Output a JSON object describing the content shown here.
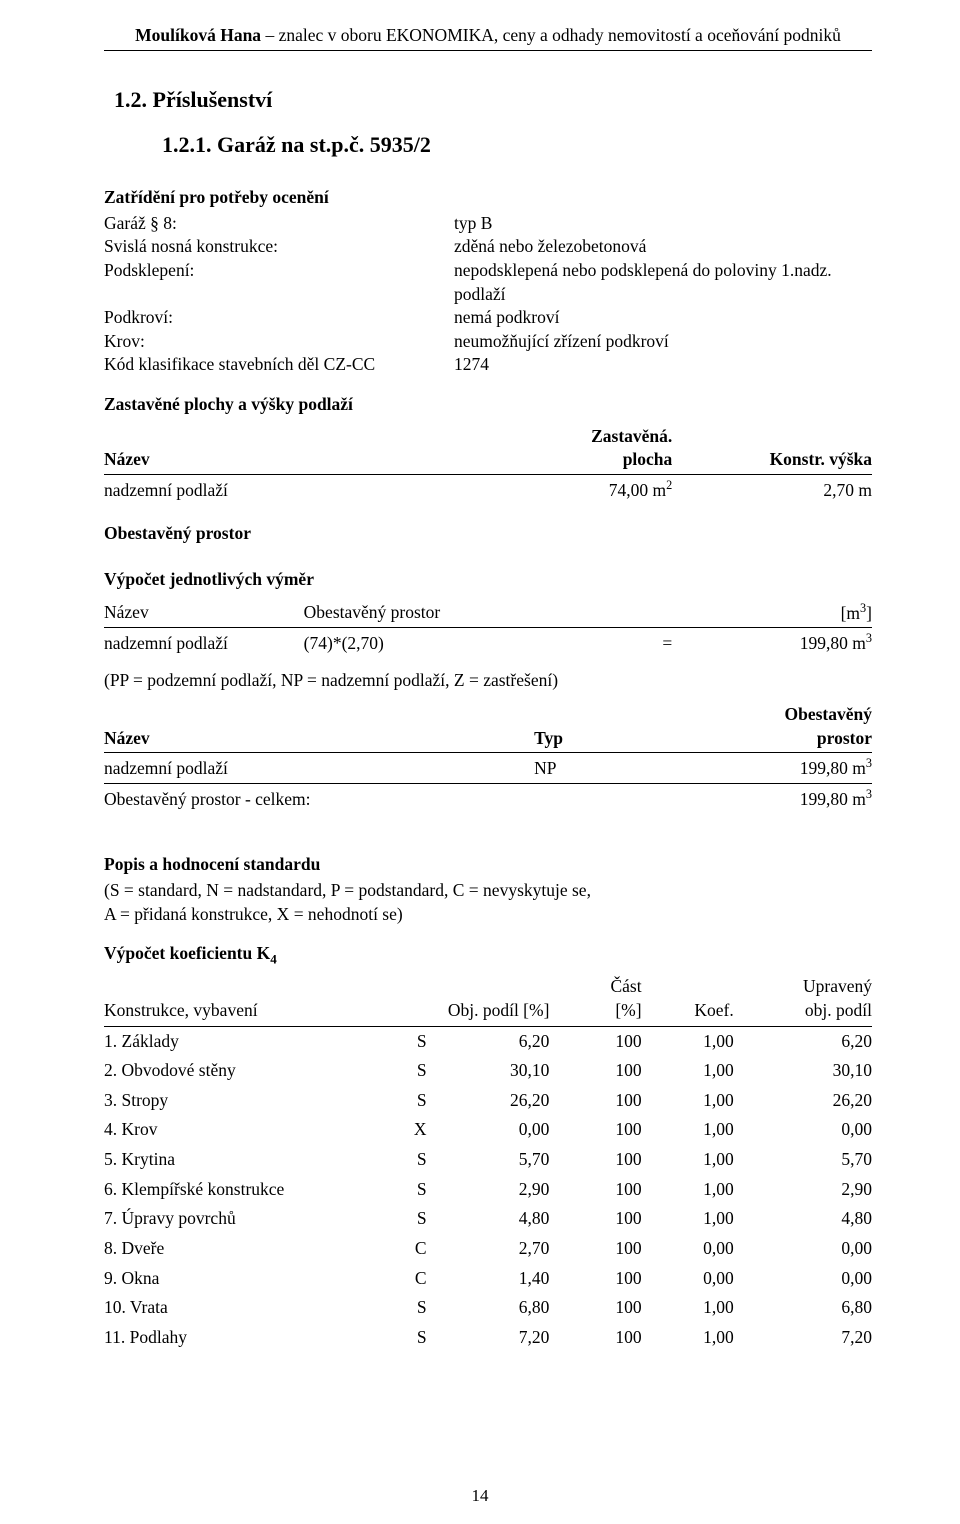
{
  "header": {
    "left": "Moulíková Hana",
    "sep": " – ",
    "right": "znalec v oboru EKONOMIKA, ceny a odhady nemovitostí a oceňování podniků"
  },
  "h1": "1.2. Příslušenství",
  "h2": "1.2.1. Garáž na st.p.č. 5935/2",
  "sec1": {
    "title": "Zatřídění pro potřeby ocenění",
    "rows": [
      {
        "k": "Garáž § 8:",
        "v": "typ B"
      },
      {
        "k": "Svislá nosná konstrukce:",
        "v": "zděná nebo železobetonová"
      },
      {
        "k": "Podsklepení:",
        "v": "nepodsklepená nebo podsklepená do poloviny 1.nadz. podlaží"
      },
      {
        "k": "Podkroví:",
        "v": "nemá podkroví"
      },
      {
        "k": "Krov:",
        "v": "neumožňující zřízení podkroví"
      },
      {
        "k": "Kód klasifikace stavebních děl CZ-CC",
        "v": "1274"
      }
    ]
  },
  "plochy": {
    "title": "Zastavěné plochy a výšky podlaží",
    "head_nazev": "Název",
    "head_plocha1": "Zastavěná.",
    "head_plocha2": "plocha",
    "head_vyska": "Konstr. výška",
    "row_label": "nadzemní podlaží",
    "row_area_val": "74,00 m",
    "row_area_sup": "2",
    "row_h": "2,70 m"
  },
  "obestaveny_title": "Obestavěný prostor",
  "vypocty": {
    "title": "Výpočet jednotlivých výměr",
    "h_nazev": "Název",
    "h_op": "Obestavěný prostor",
    "h_m3_pre": "[m",
    "h_m3_sup": "3",
    "h_m3_post": "]",
    "r_nazev": "nadzemní podlaží",
    "r_expr": "(74)*(2,70)",
    "r_eq": "=",
    "r_val_pre": "199,80 m",
    "r_val_sup": "3"
  },
  "note": "(PP = podzemní podlaží, NP = nadzemní podlaží, Z = zastřešení)",
  "tab4": {
    "h_nazev": "Název",
    "h_typ": "Typ",
    "h_op1": "Obestavěný",
    "h_op2": "prostor",
    "r1_nazev": "nadzemní podlaží",
    "r1_typ": "NP",
    "r1_val_pre": "199,80 m",
    "r1_sup": "3",
    "r2_nazev": "Obestavěný prostor - celkem:",
    "r2_val_pre": "199,80 m",
    "r2_sup": "3"
  },
  "standard": {
    "title": "Popis a hodnocení standardu",
    "line1": "(S = standard, N = nadstandard, P = podstandard, C = nevyskytuje se,",
    "line2": "A = přidaná konstrukce, X = nehodnotí se)"
  },
  "k4": {
    "title": "Výpočet koeficientu K",
    "title_sub": "4",
    "head": {
      "c1": "Konstrukce, vybavení",
      "c2": "Obj. podíl [%]",
      "c3": "Část",
      "c3b": "[%]",
      "c4": "Koef.",
      "c5a": "Upravený",
      "c5b": "obj. podíl"
    },
    "rows": [
      {
        "n": "1. Základy",
        "s": "S",
        "op": "6,20",
        "cast": "100",
        "koef": "1,00",
        "up": "6,20"
      },
      {
        "n": "2. Obvodové stěny",
        "s": "S",
        "op": "30,10",
        "cast": "100",
        "koef": "1,00",
        "up": "30,10"
      },
      {
        "n": "3. Stropy",
        "s": "S",
        "op": "26,20",
        "cast": "100",
        "koef": "1,00",
        "up": "26,20"
      },
      {
        "n": "4. Krov",
        "s": "X",
        "op": "0,00",
        "cast": "100",
        "koef": "1,00",
        "up": "0,00"
      },
      {
        "n": "5. Krytina",
        "s": "S",
        "op": "5,70",
        "cast": "100",
        "koef": "1,00",
        "up": "5,70"
      },
      {
        "n": "6. Klempířské konstrukce",
        "s": "S",
        "op": "2,90",
        "cast": "100",
        "koef": "1,00",
        "up": "2,90"
      },
      {
        "n": "7. Úpravy povrchů",
        "s": "S",
        "op": "4,80",
        "cast": "100",
        "koef": "1,00",
        "up": "4,80"
      },
      {
        "n": "8. Dveře",
        "s": "C",
        "op": "2,70",
        "cast": "100",
        "koef": "0,00",
        "up": "0,00"
      },
      {
        "n": "9. Okna",
        "s": "C",
        "op": "1,40",
        "cast": "100",
        "koef": "0,00",
        "up": "0,00"
      },
      {
        "n": "10. Vrata",
        "s": "S",
        "op": "6,80",
        "cast": "100",
        "koef": "1,00",
        "up": "6,80"
      },
      {
        "n": "11. Podlahy",
        "s": "S",
        "op": "7,20",
        "cast": "100",
        "koef": "1,00",
        "up": "7,20"
      }
    ]
  },
  "page_number": "14"
}
